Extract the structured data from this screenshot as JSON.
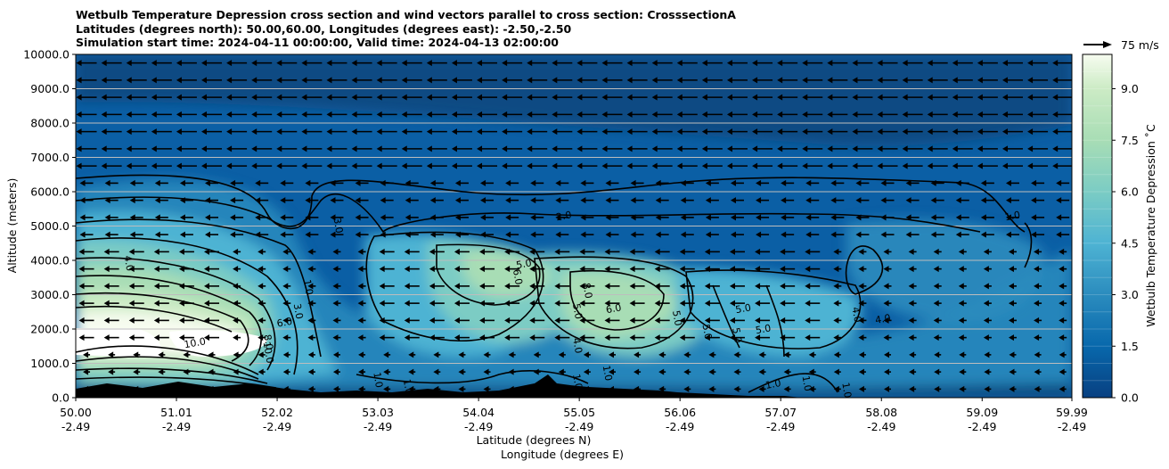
{
  "chart_data": {
    "type": "heatmap",
    "title": [
      "Wetbulb Temperature Depression cross section and wind vectors parallel to cross section: CrosssectionA",
      "Latitudes (degrees north): 50.00,60.00, Longitudes (degrees east): -2.50,-2.50",
      "Simulation start time: 2024-04-11 00:00:00, Valid time: 2024-04-13 02:00:00"
    ],
    "ylabel": "Altitude (meters)",
    "xlabel": "Latitude (degrees N)",
    "xlabel2": "Longitude (degrees E)",
    "ylim": [
      0,
      10000
    ],
    "xlim": [
      50.0,
      59.99
    ],
    "yticks": [
      "0.0",
      "1000.0",
      "2000.0",
      "3000.0",
      "4000.0",
      "5000.0",
      "6000.0",
      "7000.0",
      "8000.0",
      "9000.0",
      "10000.0"
    ],
    "xticks": [
      {
        "lat": "50.00",
        "lon": "-2.49"
      },
      {
        "lat": "51.01",
        "lon": "-2.49"
      },
      {
        "lat": "52.02",
        "lon": "-2.49"
      },
      {
        "lat": "53.03",
        "lon": "-2.49"
      },
      {
        "lat": "54.04",
        "lon": "-2.49"
      },
      {
        "lat": "55.05",
        "lon": "-2.49"
      },
      {
        "lat": "56.06",
        "lon": "-2.49"
      },
      {
        "lat": "57.07",
        "lon": "-2.49"
      },
      {
        "lat": "58.08",
        "lon": "-2.49"
      },
      {
        "lat": "59.09",
        "lon": "-2.49"
      },
      {
        "lat": "59.99",
        "lon": "-2.49"
      }
    ],
    "colorbar": {
      "label": "Wetbulb Temperature Depression ˚C",
      "range": [
        0,
        10
      ],
      "ticks": [
        "0.0",
        "1.5",
        "3.0",
        "4.5",
        "6.0",
        "7.5",
        "9.0"
      ],
      "colormap": "GnBu_r"
    },
    "quiver_key": {
      "label": "75 m/s"
    },
    "gridlines": "horizontal",
    "contour_labels": [
      {
        "text": "2.0",
        "lat": 54.9,
        "alt": 5200
      },
      {
        "text": "3.0",
        "lat": 52.6,
        "alt": 5000
      },
      {
        "text": "4.0",
        "lat": 50.5,
        "alt": 3900
      },
      {
        "text": "5.0",
        "lat": 54.5,
        "alt": 3800
      },
      {
        "text": "6.0",
        "lat": 54.4,
        "alt": 3500
      },
      {
        "text": "8.0",
        "lat": 55.1,
        "alt": 3100
      },
      {
        "text": "6.0",
        "lat": 55.4,
        "alt": 2500
      },
      {
        "text": "5.0",
        "lat": 55.0,
        "alt": 2500
      },
      {
        "text": "5.0",
        "lat": 56.0,
        "alt": 2300
      },
      {
        "text": "5.0",
        "lat": 56.7,
        "alt": 2500
      },
      {
        "text": "5.0",
        "lat": 56.3,
        "alt": 1900
      },
      {
        "text": "5.0",
        "lat": 56.6,
        "alt": 1800
      },
      {
        "text": "5.0",
        "lat": 56.9,
        "alt": 1900
      },
      {
        "text": "4.0",
        "lat": 55.0,
        "alt": 1500
      },
      {
        "text": "4.0",
        "lat": 57.8,
        "alt": 2400
      },
      {
        "text": "4.0",
        "lat": 58.1,
        "alt": 2200
      },
      {
        "text": "1.0",
        "lat": 52.3,
        "alt": 3200
      },
      {
        "text": "3.0",
        "lat": 52.2,
        "alt": 2500
      },
      {
        "text": "6.0",
        "lat": 52.1,
        "alt": 2100
      },
      {
        "text": "8.0",
        "lat": 51.9,
        "alt": 1600
      },
      {
        "text": "10.0",
        "lat": 51.9,
        "alt": 1300
      },
      {
        "text": "10.0",
        "lat": 51.2,
        "alt": 1500
      },
      {
        "text": "1.0",
        "lat": 53.0,
        "alt": 500
      },
      {
        "text": "1.0",
        "lat": 53.3,
        "alt": 300
      },
      {
        "text": "1.0",
        "lat": 59.4,
        "alt": 5200
      },
      {
        "text": "1.0",
        "lat": 55.3,
        "alt": 700
      },
      {
        "text": "1.0",
        "lat": 55.0,
        "alt": 450
      },
      {
        "text": "1.0",
        "lat": 57.0,
        "alt": 300
      },
      {
        "text": "1.0",
        "lat": 57.3,
        "alt": 400
      },
      {
        "text": "1.0",
        "lat": 57.7,
        "alt": 200
      }
    ]
  }
}
